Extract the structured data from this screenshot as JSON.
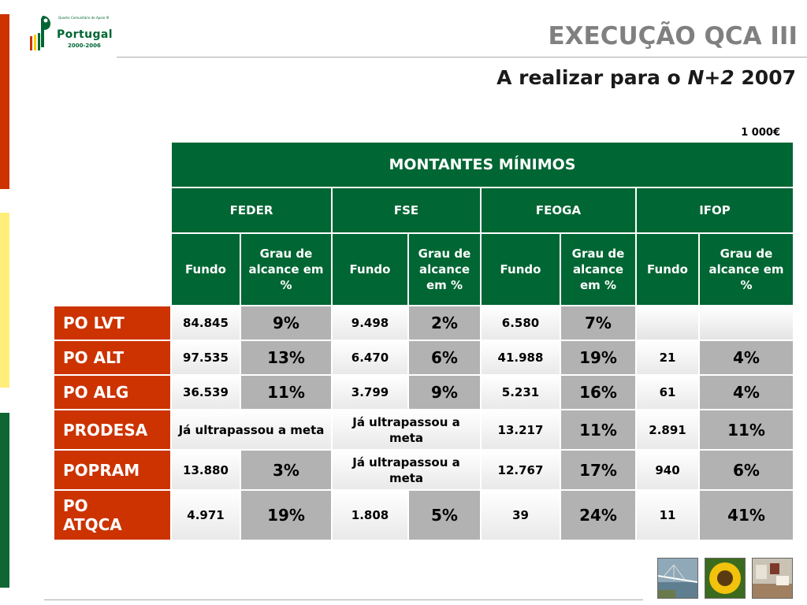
{
  "logo": {
    "small_text": "Quadro Comunitário de Apoio III",
    "word": "Portugal",
    "years": "2000-2006"
  },
  "header": {
    "title": "EXECUÇÃO QCA III",
    "subtitle_pre": "A realizar para o ",
    "subtitle_italic": "N+2",
    "subtitle_post": " 2007"
  },
  "unit": "1 000€",
  "table": {
    "title": "MONTANTES MÍNIMOS",
    "funds": [
      "FEDER",
      "FSE",
      "FEOGA",
      "IFOP"
    ],
    "sub": {
      "feder": [
        "Fundo",
        "Grau de alcance em %"
      ],
      "fse": [
        "Fundo",
        "Grau de alcance em %"
      ],
      "feoga": [
        "Fundo",
        "Grau de alcance em %"
      ],
      "ifop": [
        "Fundo",
        "Grau de alcance em %"
      ]
    },
    "rows": [
      {
        "label": "PO LVT",
        "feder_fundo": "84.845",
        "feder_grau": "9%",
        "fse_fundo": "9.498",
        "fse_grau": "2%",
        "feoga_fundo": "6.580",
        "feoga_grau": "7%",
        "ifop_fundo": "",
        "ifop_grau": ""
      },
      {
        "label": "PO ALT",
        "feder_fundo": "97.535",
        "feder_grau": "13%",
        "fse_fundo": "6.470",
        "fse_grau": "6%",
        "feoga_fundo": "41.988",
        "feoga_grau": "19%",
        "ifop_fundo": "21",
        "ifop_grau": "4%"
      },
      {
        "label": "PO ALG",
        "feder_fundo": "36.539",
        "feder_grau": "11%",
        "fse_fundo": "3.799",
        "fse_grau": "9%",
        "feoga_fundo": "5.231",
        "feoga_grau": "16%",
        "ifop_fundo": "61",
        "ifop_grau": "4%"
      },
      {
        "label": "PRODESA",
        "feder_merged": "Já ultrapassou a meta",
        "fse_merged": "Já ultrapassou a meta",
        "feoga_fundo": "13.217",
        "feoga_grau": "11%",
        "ifop_fundo": "2.891",
        "ifop_grau": "11%"
      },
      {
        "label": "POPRAM",
        "feder_fundo": "13.880",
        "feder_grau": "3%",
        "fse_merged": "Já ultrapassou a meta",
        "feoga_fundo": "12.767",
        "feoga_grau": "17%",
        "ifop_fundo": "940",
        "ifop_grau": "6%"
      },
      {
        "label": "PO ATQCA",
        "feder_fundo": "4.971",
        "feder_grau": "19%",
        "fse_fundo": "1.808",
        "fse_grau": "5%",
        "feoga_fundo": "39",
        "feoga_grau": "24%",
        "ifop_fundo": "11",
        "ifop_grau": "41%"
      }
    ]
  },
  "colors": {
    "header_green": "#006633",
    "row_red": "#cc3300",
    "pct_gray": "#b2b2b2",
    "bar_yellow": "#ffee77"
  },
  "photos": [
    "bridge-photo",
    "sunflower-photo",
    "factory-photo"
  ]
}
